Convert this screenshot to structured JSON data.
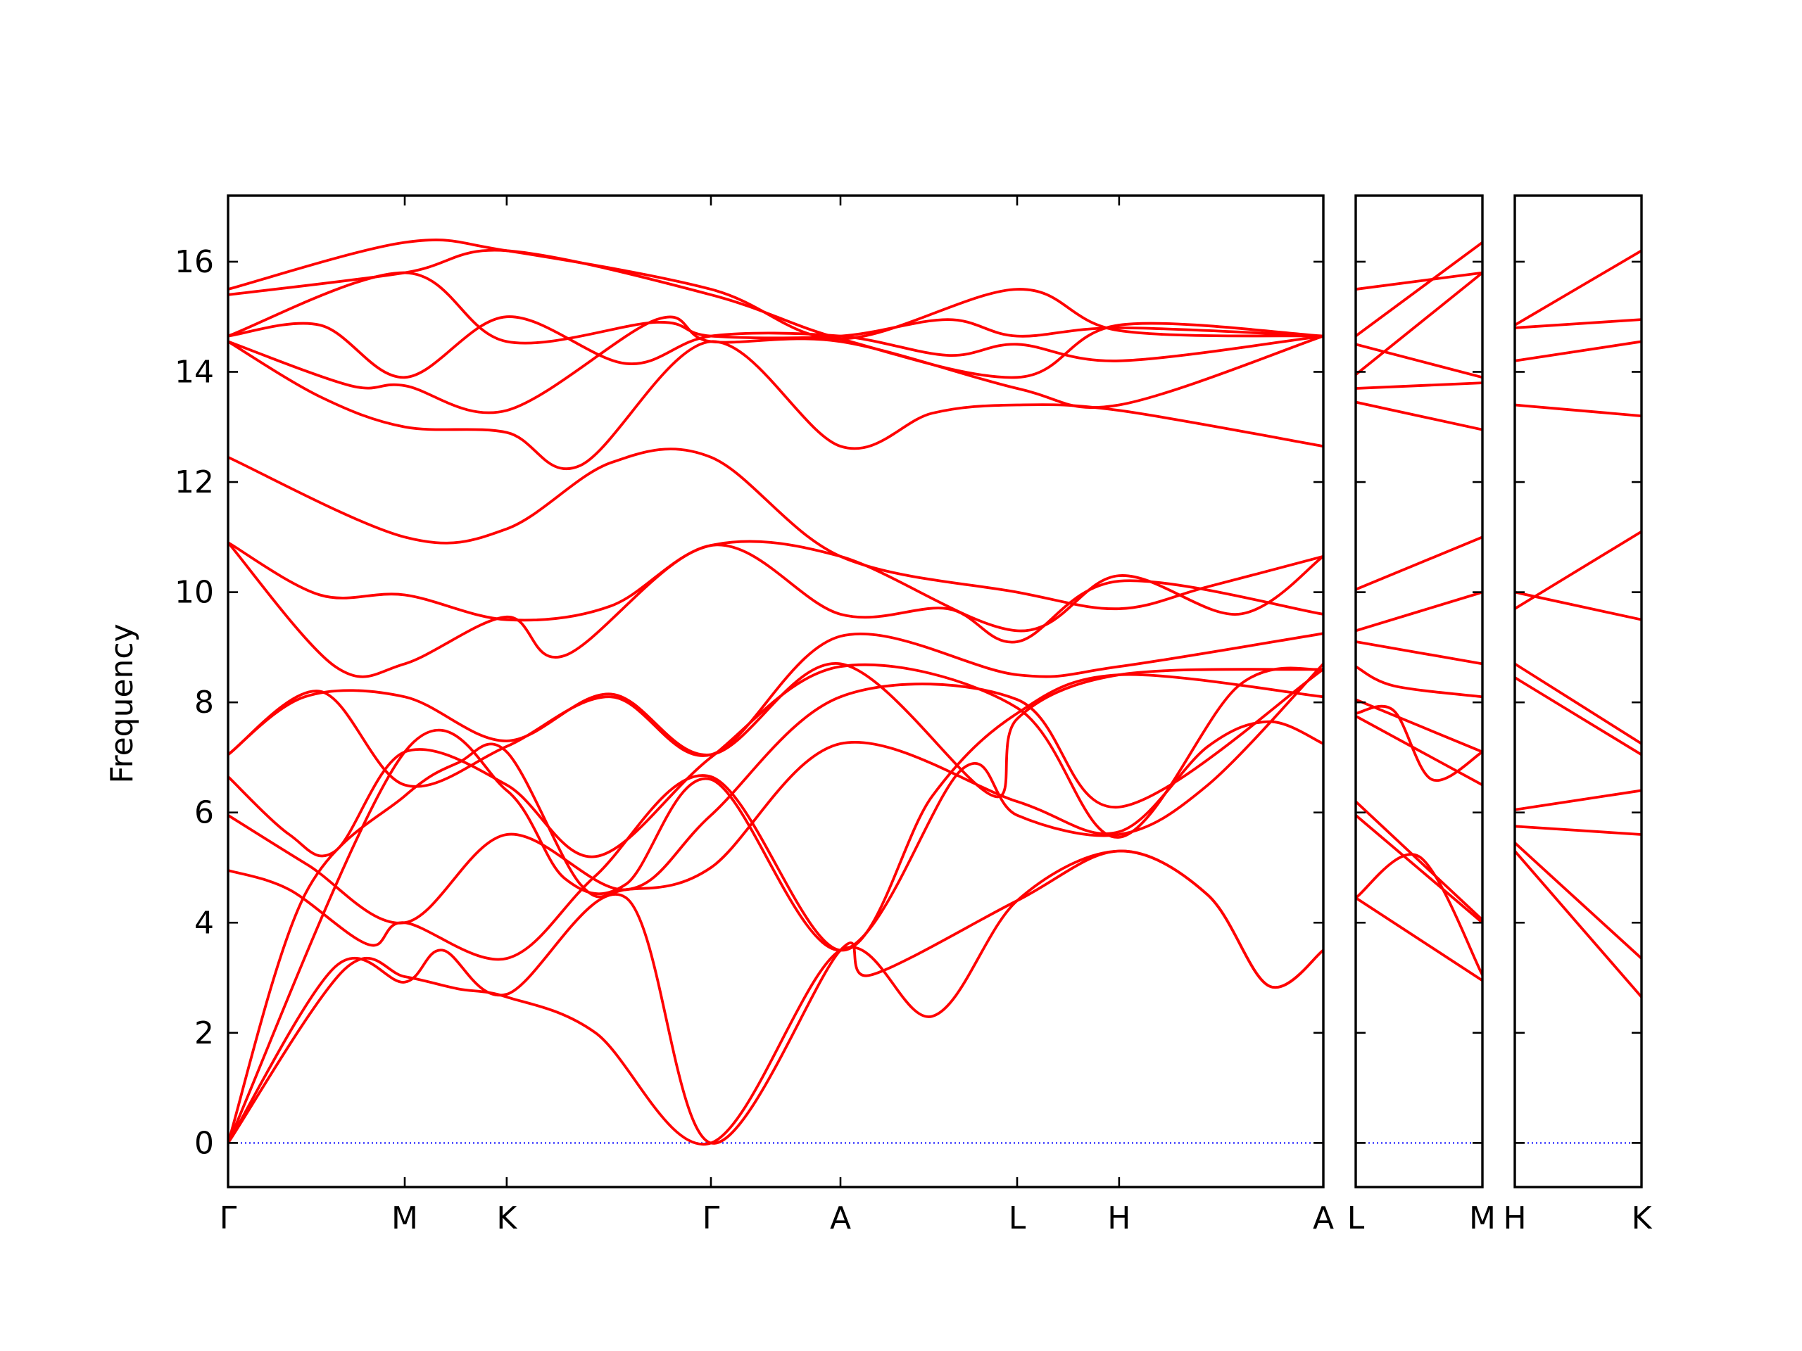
{
  "chart_data": {
    "type": "line",
    "ylabel": "Frequency",
    "ylim": [
      -0.8,
      17.2
    ],
    "yticks": [
      0,
      2,
      4,
      6,
      8,
      10,
      12,
      14,
      16
    ],
    "colors": {
      "bands": "#ff0000",
      "zero_line": "#0000ff",
      "frame": "#000000"
    },
    "grid": false,
    "panels": [
      {
        "xlabels": [
          "Γ",
          "M",
          "K",
          "Γ",
          "A",
          "L",
          "H",
          "A"
        ],
        "xpos": [
          0,
          0.577,
          0.91,
          1.577,
          2.0,
          2.577,
          2.91,
          3.577
        ],
        "bands": [
          [
            [
              0,
              0
            ],
            [
              0.38,
              3.15
            ],
            [
              0.577,
              3.02
            ],
            [
              0.75,
              2.8
            ],
            [
              0.91,
              2.65
            ],
            [
              1.2,
              2.0
            ],
            [
              1.577,
              0
            ],
            [
              2.0,
              3.5
            ],
            [
              2.3,
              2.3
            ],
            [
              2.577,
              4.4
            ],
            [
              2.91,
              5.3
            ],
            [
              3.2,
              4.5
            ],
            [
              3.4,
              2.85
            ],
            [
              3.577,
              3.5
            ]
          ],
          [
            [
              0,
              0
            ],
            [
              0.35,
              3.2
            ],
            [
              0.577,
              2.92
            ],
            [
              0.7,
              3.5
            ],
            [
              0.91,
              2.7
            ],
            [
              1.3,
              4.45
            ],
            [
              1.577,
              0
            ],
            [
              2.0,
              3.5
            ],
            [
              2.1,
              3.05
            ],
            [
              2.577,
              4.4
            ],
            [
              2.91,
              5.3
            ],
            [
              3.2,
              4.5
            ],
            [
              3.4,
              2.85
            ],
            [
              3.577,
              3.5
            ]
          ],
          [
            [
              0,
              0
            ],
            [
              0.25,
              4.5
            ],
            [
              0.577,
              6.3
            ],
            [
              0.75,
              6.9
            ],
            [
              0.91,
              7.1
            ],
            [
              1.15,
              4.7
            ],
            [
              1.3,
              4.6
            ],
            [
              1.577,
              5.0
            ],
            [
              2.0,
              7.25
            ],
            [
              2.577,
              6.2
            ],
            [
              2.91,
              5.65
            ],
            [
              3.2,
              7.2
            ],
            [
              3.4,
              7.65
            ],
            [
              3.577,
              7.25
            ]
          ],
          [
            [
              0,
              0
            ],
            [
              0.577,
              7.1
            ],
            [
              0.91,
              6.4
            ],
            [
              1.1,
              4.8
            ],
            [
              1.3,
              4.7
            ],
            [
              1.577,
              6.6
            ],
            [
              2.0,
              3.5
            ],
            [
              2.4,
              6.8
            ],
            [
              2.577,
              5.95
            ],
            [
              2.91,
              5.6
            ],
            [
              3.2,
              6.5
            ],
            [
              3.577,
              8.7
            ]
          ],
          [
            [
              0,
              4.95
            ],
            [
              0.2,
              4.6
            ],
            [
              0.46,
              3.6
            ],
            [
              0.577,
              4.0
            ],
            [
              0.91,
              3.35
            ],
            [
              1.2,
              4.85
            ],
            [
              1.577,
              6.65
            ],
            [
              2.0,
              3.5
            ],
            [
              2.3,
              6.3
            ],
            [
              2.577,
              7.8
            ],
            [
              2.91,
              8.5
            ],
            [
              3.577,
              8.1
            ]
          ],
          [
            [
              0,
              5.95
            ],
            [
              0.26,
              5.05
            ],
            [
              0.577,
              4.0
            ],
            [
              0.91,
              5.6
            ],
            [
              1.3,
              4.6
            ],
            [
              1.577,
              5.95
            ],
            [
              2.0,
              8.1
            ],
            [
              2.577,
              8.05
            ],
            [
              2.91,
              6.1
            ],
            [
              3.577,
              8.6
            ]
          ],
          [
            [
              0,
              6.65
            ],
            [
              0.2,
              5.6
            ],
            [
              0.35,
              5.3
            ],
            [
              0.577,
              7.1
            ],
            [
              0.91,
              6.5
            ],
            [
              1.2,
              5.2
            ],
            [
              1.577,
              7.0
            ],
            [
              2.0,
              8.65
            ],
            [
              2.577,
              7.9
            ],
            [
              2.91,
              5.55
            ],
            [
              3.3,
              8.3
            ],
            [
              3.577,
              8.6
            ]
          ],
          [
            [
              0,
              7.05
            ],
            [
              0.25,
              8.1
            ],
            [
              0.577,
              8.1
            ],
            [
              0.91,
              7.3
            ],
            [
              1.25,
              8.15
            ],
            [
              1.577,
              7.05
            ],
            [
              2.0,
              8.7
            ],
            [
              2.5,
              6.3
            ],
            [
              2.577,
              7.7
            ],
            [
              2.91,
              8.5
            ],
            [
              3.577,
              8.6
            ]
          ],
          [
            [
              0,
              7.05
            ],
            [
              0.3,
              8.2
            ],
            [
              0.577,
              6.5
            ],
            [
              0.91,
              7.2
            ],
            [
              1.25,
              8.1
            ],
            [
              1.577,
              7.05
            ],
            [
              2.0,
              9.2
            ],
            [
              2.577,
              8.5
            ],
            [
              2.91,
              8.65
            ],
            [
              3.577,
              9.25
            ]
          ],
          [
            [
              0,
              10.9
            ],
            [
              0.35,
              8.65
            ],
            [
              0.577,
              8.7
            ],
            [
              0.91,
              9.55
            ],
            [
              1.1,
              8.85
            ],
            [
              1.577,
              10.85
            ],
            [
              2.0,
              9.6
            ],
            [
              2.35,
              9.7
            ],
            [
              2.577,
              9.1
            ],
            [
              2.91,
              10.2
            ],
            [
              3.577,
              9.6
            ]
          ],
          [
            [
              0,
              10.9
            ],
            [
              0.3,
              9.95
            ],
            [
              0.577,
              9.95
            ],
            [
              0.91,
              9.5
            ],
            [
              1.25,
              9.75
            ],
            [
              1.577,
              10.85
            ],
            [
              2.0,
              10.65
            ],
            [
              2.577,
              9.3
            ],
            [
              2.91,
              10.3
            ],
            [
              3.3,
              9.6
            ],
            [
              3.577,
              10.65
            ]
          ],
          [
            [
              0,
              12.45
            ],
            [
              0.577,
              11.0
            ],
            [
              0.91,
              11.15
            ],
            [
              1.25,
              12.35
            ],
            [
              1.577,
              12.45
            ],
            [
              2.0,
              10.65
            ],
            [
              2.577,
              10.0
            ],
            [
              2.91,
              9.7
            ],
            [
              3.2,
              10.1
            ],
            [
              3.577,
              10.65
            ]
          ],
          [
            [
              0,
              14.55
            ],
            [
              0.3,
              13.55
            ],
            [
              0.577,
              13.0
            ],
            [
              0.91,
              12.9
            ],
            [
              1.15,
              12.3
            ],
            [
              1.577,
              14.55
            ],
            [
              2.0,
              12.65
            ],
            [
              2.3,
              13.25
            ],
            [
              2.577,
              13.4
            ],
            [
              2.91,
              13.3
            ],
            [
              3.577,
              12.65
            ]
          ],
          [
            [
              0,
              14.55
            ],
            [
              0.4,
              13.75
            ],
            [
              0.577,
              13.75
            ],
            [
              0.91,
              13.3
            ],
            [
              1.4,
              14.95
            ],
            [
              1.577,
              14.55
            ],
            [
              2.0,
              14.55
            ],
            [
              2.577,
              13.7
            ],
            [
              2.91,
              13.4
            ],
            [
              3.577,
              14.65
            ]
          ],
          [
            [
              0,
              14.65
            ],
            [
              0.3,
              14.85
            ],
            [
              0.577,
              13.9
            ],
            [
              0.91,
              15.0
            ],
            [
              1.3,
              14.15
            ],
            [
              1.577,
              14.65
            ],
            [
              2.0,
              14.65
            ],
            [
              2.35,
              14.3
            ],
            [
              2.577,
              14.5
            ],
            [
              2.91,
              14.2
            ],
            [
              3.577,
              14.65
            ]
          ],
          [
            [
              0,
              14.65
            ],
            [
              0.577,
              15.8
            ],
            [
              0.91,
              14.55
            ],
            [
              1.4,
              14.9
            ],
            [
              1.577,
              14.65
            ],
            [
              2.0,
              14.65
            ],
            [
              2.35,
              14.95
            ],
            [
              2.577,
              14.65
            ],
            [
              2.91,
              14.8
            ],
            [
              3.577,
              14.65
            ]
          ],
          [
            [
              0,
              15.4
            ],
            [
              0.577,
              15.8
            ],
            [
              0.91,
              16.2
            ],
            [
              1.577,
              15.4
            ],
            [
              2.0,
              14.6
            ],
            [
              2.577,
              13.9
            ],
            [
              2.91,
              14.85
            ],
            [
              3.577,
              14.65
            ]
          ],
          [
            [
              0,
              15.5
            ],
            [
              0.577,
              16.35
            ],
            [
              0.91,
              16.2
            ],
            [
              1.577,
              15.5
            ],
            [
              2.0,
              14.6
            ],
            [
              2.577,
              15.5
            ],
            [
              2.91,
              14.75
            ],
            [
              3.577,
              14.65
            ]
          ]
        ]
      },
      {
        "xlabels": [
          "L",
          "M"
        ],
        "xpos": [
          0,
          1
        ],
        "bands": [
          [
            [
              0,
              4.45
            ],
            [
              1,
              2.95
            ]
          ],
          [
            [
              0,
              4.45
            ],
            [
              0.5,
              5.2
            ],
            [
              1,
              3.05
            ]
          ],
          [
            [
              0,
              6.2
            ],
            [
              1,
              4.05
            ]
          ],
          [
            [
              0,
              5.95
            ],
            [
              1,
              4.0
            ]
          ],
          [
            [
              0,
              7.8
            ],
            [
              0.3,
              7.85
            ],
            [
              0.6,
              6.6
            ],
            [
              1,
              7.1
            ]
          ],
          [
            [
              0,
              7.75
            ],
            [
              1,
              6.5
            ]
          ],
          [
            [
              0,
              8.05
            ],
            [
              1,
              7.1
            ]
          ],
          [
            [
              0,
              8.65
            ],
            [
              0.3,
              8.3
            ],
            [
              1,
              8.1
            ]
          ],
          [
            [
              0,
              9.1
            ],
            [
              1,
              8.7
            ]
          ],
          [
            [
              0,
              9.3
            ],
            [
              1,
              10.0
            ]
          ],
          [
            [
              0,
              10.05
            ],
            [
              1,
              11.0
            ]
          ],
          [
            [
              0,
              13.45
            ],
            [
              1,
              12.95
            ]
          ],
          [
            [
              0,
              13.7
            ],
            [
              1,
              13.8
            ]
          ],
          [
            [
              0,
              13.95
            ],
            [
              1,
              15.8
            ]
          ],
          [
            [
              0,
              14.5
            ],
            [
              1,
              13.9
            ]
          ],
          [
            [
              0,
              14.65
            ],
            [
              1,
              16.35
            ]
          ],
          [
            [
              0,
              15.5
            ],
            [
              1,
              15.8
            ]
          ]
        ]
      },
      {
        "xlabels": [
          "H",
          "K"
        ],
        "xpos": [
          0,
          1
        ],
        "bands": [
          [
            [
              0,
              5.3
            ],
            [
              1,
              2.65
            ]
          ],
          [
            [
              0,
              5.45
            ],
            [
              1,
              3.35
            ]
          ],
          [
            [
              0,
              5.75
            ],
            [
              1,
              5.6
            ]
          ],
          [
            [
              0,
              6.05
            ],
            [
              1,
              6.4
            ]
          ],
          [
            [
              0,
              8.45
            ],
            [
              1,
              7.05
            ]
          ],
          [
            [
              0,
              8.7
            ],
            [
              1,
              7.25
            ]
          ],
          [
            [
              0,
              10.0
            ],
            [
              1,
              9.5
            ]
          ],
          [
            [
              0,
              9.7
            ],
            [
              1,
              11.1
            ]
          ],
          [
            [
              0,
              13.4
            ],
            [
              1,
              13.2
            ]
          ],
          [
            [
              0,
              14.2
            ],
            [
              1,
              14.55
            ]
          ],
          [
            [
              0,
              14.8
            ],
            [
              1,
              14.95
            ]
          ],
          [
            [
              0,
              14.85
            ],
            [
              1,
              16.2
            ]
          ]
        ]
      }
    ]
  }
}
